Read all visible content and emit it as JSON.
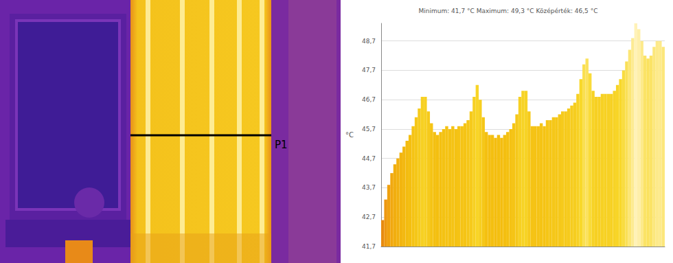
{
  "thermal_image": {
    "profile_label": "P1"
  },
  "chart_data": {
    "type": "bar",
    "title": "Minimum: 41,7 °C Maximum: 49,3 °C Középérték: 46,5 °C",
    "y_label": "°C",
    "categories": [
      null,
      null,
      null,
      null,
      null,
      null,
      null,
      null,
      null,
      null,
      null,
      null,
      null,
      null,
      null,
      null,
      null,
      null,
      null,
      null,
      null,
      null,
      null,
      null,
      null,
      null,
      null,
      null,
      null,
      null,
      null,
      null,
      null,
      null,
      null,
      null,
      null,
      null,
      null,
      null,
      null,
      null,
      null,
      null,
      null,
      null,
      null,
      null,
      null,
      null,
      null,
      null,
      null,
      null,
      null,
      null,
      null,
      null,
      null,
      null,
      null,
      null,
      null,
      null,
      null,
      null,
      null,
      null,
      null,
      null,
      null,
      null,
      null,
      null,
      null,
      null,
      null,
      null,
      null,
      null,
      null,
      null,
      null,
      null,
      null,
      null,
      null,
      null,
      null,
      null,
      null,
      null,
      null
    ],
    "values": [
      42.6,
      43.3,
      43.8,
      44.2,
      44.5,
      44.7,
      44.9,
      45.1,
      45.3,
      45.5,
      45.8,
      46.1,
      46.4,
      46.8,
      46.8,
      46.3,
      45.9,
      45.6,
      45.5,
      45.6,
      45.7,
      45.8,
      45.7,
      45.8,
      45.7,
      45.8,
      45.8,
      45.9,
      46.0,
      46.3,
      46.8,
      47.2,
      46.7,
      46.1,
      45.6,
      45.5,
      45.5,
      45.4,
      45.5,
      45.4,
      45.5,
      45.6,
      45.7,
      45.9,
      46.2,
      46.8,
      47.0,
      47.0,
      46.3,
      45.8,
      45.8,
      45.8,
      45.9,
      45.8,
      46.0,
      46.0,
      46.1,
      46.1,
      46.2,
      46.3,
      46.3,
      46.4,
      46.5,
      46.6,
      46.9,
      47.4,
      47.9,
      48.1,
      47.6,
      47.0,
      46.8,
      46.8,
      46.9,
      46.9,
      46.9,
      46.9,
      47.0,
      47.2,
      47.4,
      47.7,
      48.0,
      48.4,
      48.8,
      49.3,
      49.1,
      48.7,
      48.2,
      48.1,
      48.2,
      48.5,
      48.7,
      48.7,
      48.5
    ],
    "ylim": [
      41.7,
      49.3
    ],
    "yticks": [
      {
        "value": 41.7,
        "label": "41,7"
      },
      {
        "value": 42.7,
        "label": "42,7"
      },
      {
        "value": 43.7,
        "label": "43,7"
      },
      {
        "value": 44.7,
        "label": "44,7"
      },
      {
        "value": 45.7,
        "label": "45,7"
      },
      {
        "value": 46.7,
        "label": "46,7"
      },
      {
        "value": 47.7,
        "label": "47,7"
      },
      {
        "value": 48.7,
        "label": "48,7"
      }
    ],
    "grid": true,
    "tick_labels": "y"
  }
}
